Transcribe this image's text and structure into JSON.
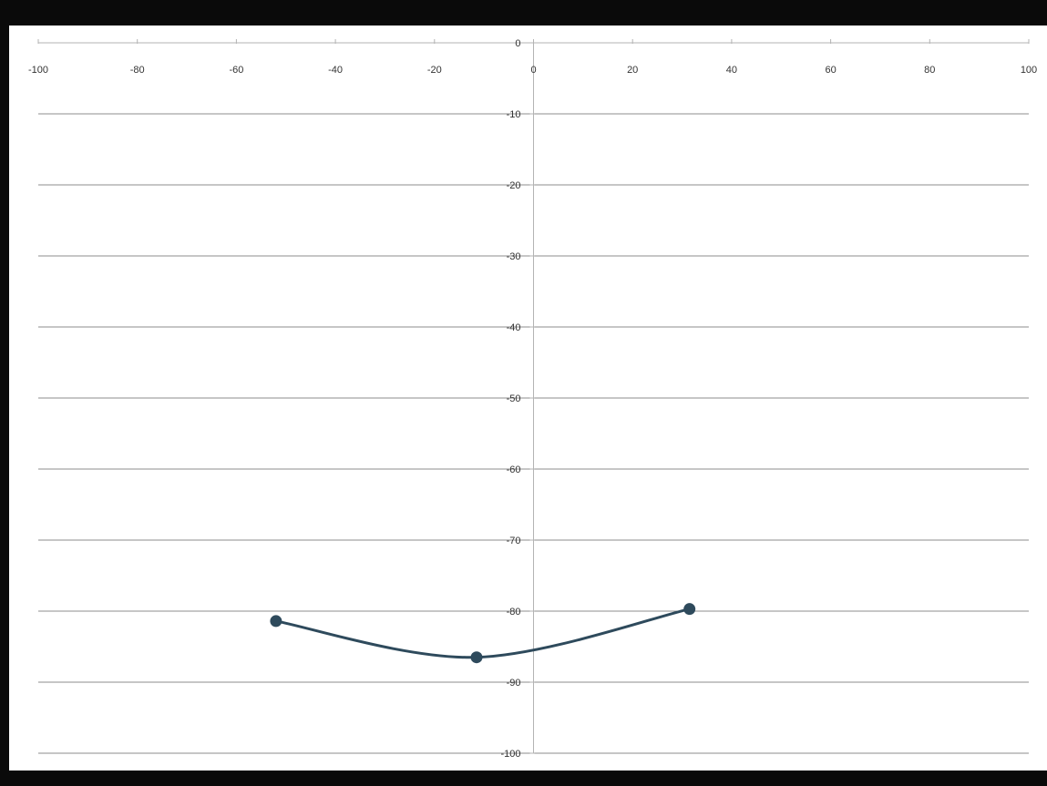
{
  "chart_data": {
    "type": "scatter",
    "smooth": true,
    "title": "",
    "xlabel": "",
    "ylabel": "",
    "xlim": [
      -100,
      100
    ],
    "ylim": [
      -100,
      0
    ],
    "xticks": [
      -100,
      -80,
      -60,
      -40,
      -20,
      0,
      20,
      40,
      60,
      80,
      100
    ],
    "yticks": [
      0,
      -10,
      -20,
      -30,
      -40,
      -50,
      -60,
      -70,
      -80,
      -90,
      -100
    ],
    "grid": "horizontal",
    "legend": "none",
    "series": [
      {
        "color": "#2e4a5c",
        "points": [
          {
            "x": -52,
            "y": -81.4
          },
          {
            "x": -11.5,
            "y": -86.5
          },
          {
            "x": 31.5,
            "y": -79.7
          }
        ]
      }
    ]
  },
  "colors": {
    "frame": "#0a0a0a",
    "plot_background": "#ffffff",
    "gridline": "#8c8c8c",
    "axis": "#b3b3b3",
    "series": "#2e4a5c"
  }
}
